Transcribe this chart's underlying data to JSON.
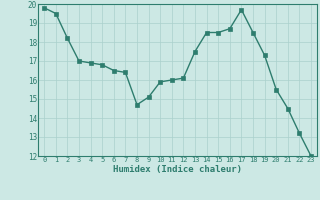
{
  "x": [
    0,
    1,
    2,
    3,
    4,
    5,
    6,
    7,
    8,
    9,
    10,
    11,
    12,
    13,
    14,
    15,
    16,
    17,
    18,
    19,
    20,
    21,
    22,
    23
  ],
  "y": [
    19.8,
    19.5,
    18.2,
    17.0,
    16.9,
    16.8,
    16.5,
    16.4,
    14.7,
    15.1,
    15.9,
    16.0,
    16.1,
    17.5,
    18.5,
    18.5,
    18.7,
    19.7,
    18.5,
    17.3,
    15.5,
    14.5,
    13.2,
    12.0
  ],
  "xlabel": "Humidex (Indice chaleur)",
  "ylim": [
    12,
    20
  ],
  "xlim": [
    -0.5,
    23.5
  ],
  "yticks": [
    12,
    13,
    14,
    15,
    16,
    17,
    18,
    19,
    20
  ],
  "xticks": [
    0,
    1,
    2,
    3,
    4,
    5,
    6,
    7,
    8,
    9,
    10,
    11,
    12,
    13,
    14,
    15,
    16,
    17,
    18,
    19,
    20,
    21,
    22,
    23
  ],
  "line_color": "#2e7d6e",
  "marker_color": "#2e7d6e",
  "bg_color": "#cce8e4",
  "grid_color": "#aad0cc",
  "xlabel_color": "#2e7d6e",
  "tick_color": "#2e7d6e",
  "spine_color": "#2e7d6e"
}
